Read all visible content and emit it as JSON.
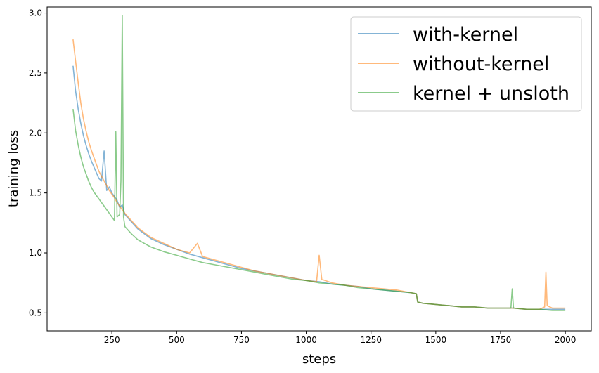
{
  "chart_data": {
    "type": "line",
    "title": "",
    "xlabel": "steps",
    "ylabel": "training loss",
    "xlim": [
      0,
      2100
    ],
    "ylim": [
      0.35,
      3.05
    ],
    "xticks": [
      250,
      500,
      750,
      1000,
      1250,
      1500,
      1750,
      2000
    ],
    "yticks": [
      0.5,
      1.0,
      1.5,
      2.0,
      2.5,
      3.0
    ],
    "xtick_labels": [
      "250",
      "500",
      "750",
      "1000",
      "1250",
      "1500",
      "1750",
      "2000"
    ],
    "ytick_labels": [
      "0.5",
      "1.0",
      "1.5",
      "2.0",
      "2.5",
      "3.0"
    ],
    "grid": false,
    "legend_position": "top-right",
    "series": [
      {
        "name": "with-kernel",
        "color": "#1f77b4",
        "x": [
          100,
          110,
          120,
          130,
          140,
          150,
          160,
          170,
          180,
          190,
          200,
          210,
          220,
          230,
          240,
          250,
          260,
          270,
          280,
          290,
          300,
          325,
          350,
          375,
          400,
          450,
          500,
          550,
          600,
          650,
          700,
          750,
          800,
          850,
          900,
          950,
          1000,
          1050,
          1100,
          1150,
          1200,
          1250,
          1300,
          1350,
          1400,
          1425,
          1430,
          1450,
          1500,
          1550,
          1600,
          1650,
          1700,
          1750,
          1800,
          1850,
          1900,
          1950,
          2000
        ],
        "y": [
          2.56,
          2.35,
          2.2,
          2.08,
          1.98,
          1.9,
          1.83,
          1.77,
          1.72,
          1.67,
          1.62,
          1.6,
          1.85,
          1.52,
          1.55,
          1.5,
          1.47,
          1.44,
          1.38,
          1.4,
          1.32,
          1.26,
          1.2,
          1.16,
          1.12,
          1.07,
          1.03,
          0.99,
          0.96,
          0.93,
          0.9,
          0.87,
          0.85,
          0.83,
          0.81,
          0.79,
          0.77,
          0.76,
          0.74,
          0.73,
          0.72,
          0.7,
          0.69,
          0.68,
          0.67,
          0.66,
          0.59,
          0.58,
          0.57,
          0.56,
          0.55,
          0.55,
          0.54,
          0.54,
          0.54,
          0.53,
          0.53,
          0.53,
          0.53
        ]
      },
      {
        "name": "without-kernel",
        "color": "#ff7f0e",
        "x": [
          100,
          110,
          120,
          130,
          140,
          150,
          160,
          170,
          180,
          190,
          200,
          210,
          220,
          230,
          240,
          250,
          260,
          270,
          280,
          290,
          300,
          325,
          350,
          375,
          400,
          450,
          500,
          550,
          580,
          600,
          650,
          700,
          750,
          800,
          850,
          900,
          950,
          1000,
          1040,
          1050,
          1060,
          1100,
          1150,
          1200,
          1250,
          1300,
          1350,
          1400,
          1425,
          1430,
          1450,
          1500,
          1550,
          1600,
          1650,
          1700,
          1750,
          1800,
          1850,
          1900,
          1920,
          1925,
          1930,
          1950,
          2000
        ],
        "y": [
          2.78,
          2.6,
          2.42,
          2.25,
          2.12,
          2.02,
          1.93,
          1.86,
          1.8,
          1.74,
          1.68,
          1.64,
          1.6,
          1.56,
          1.52,
          1.49,
          1.46,
          1.42,
          1.39,
          1.36,
          1.33,
          1.27,
          1.21,
          1.17,
          1.13,
          1.08,
          1.03,
          1.0,
          1.08,
          0.97,
          0.94,
          0.91,
          0.88,
          0.85,
          0.83,
          0.81,
          0.79,
          0.77,
          0.76,
          0.98,
          0.78,
          0.75,
          0.73,
          0.72,
          0.71,
          0.7,
          0.69,
          0.67,
          0.66,
          0.59,
          0.58,
          0.57,
          0.56,
          0.55,
          0.55,
          0.54,
          0.54,
          0.54,
          0.53,
          0.53,
          0.55,
          0.84,
          0.56,
          0.54,
          0.54
        ]
      },
      {
        "name": "kernel + unsloth",
        "color": "#2ca02c",
        "x": [
          100,
          110,
          120,
          130,
          140,
          150,
          160,
          170,
          180,
          190,
          200,
          210,
          220,
          230,
          240,
          250,
          260,
          265,
          270,
          280,
          285,
          290,
          295,
          300,
          325,
          350,
          375,
          400,
          450,
          500,
          550,
          600,
          650,
          700,
          750,
          800,
          850,
          900,
          950,
          1000,
          1050,
          1100,
          1150,
          1200,
          1250,
          1300,
          1350,
          1400,
          1425,
          1430,
          1450,
          1500,
          1550,
          1600,
          1650,
          1700,
          1750,
          1790,
          1795,
          1800,
          1850,
          1900,
          1950,
          2000
        ],
        "y": [
          2.2,
          2.02,
          1.9,
          1.8,
          1.72,
          1.66,
          1.6,
          1.55,
          1.51,
          1.48,
          1.45,
          1.42,
          1.39,
          1.36,
          1.33,
          1.3,
          1.27,
          2.01,
          1.3,
          1.32,
          1.6,
          2.98,
          1.3,
          1.22,
          1.16,
          1.11,
          1.08,
          1.05,
          1.01,
          0.98,
          0.95,
          0.92,
          0.9,
          0.88,
          0.86,
          0.84,
          0.82,
          0.8,
          0.78,
          0.77,
          0.75,
          0.74,
          0.73,
          0.71,
          0.7,
          0.69,
          0.68,
          0.67,
          0.66,
          0.59,
          0.58,
          0.57,
          0.56,
          0.55,
          0.55,
          0.54,
          0.54,
          0.54,
          0.7,
          0.54,
          0.53,
          0.53,
          0.52,
          0.52
        ]
      }
    ]
  }
}
